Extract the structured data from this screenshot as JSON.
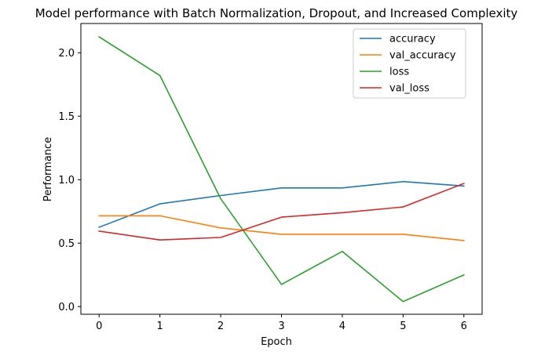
{
  "chart_data": {
    "type": "line",
    "title": "Model performance with Batch Normalization, Dropout, and Increased Complexity",
    "xlabel": "Epoch",
    "ylabel": "Performance",
    "x": [
      0,
      1,
      2,
      3,
      4,
      5,
      6
    ],
    "xlim": [
      -0.3,
      6.3
    ],
    "ylim": [
      -0.06,
      2.23
    ],
    "xticks": [
      "0",
      "1",
      "2",
      "3",
      "4",
      "5",
      "6"
    ],
    "yticks": [
      "0.0",
      "0.5",
      "1.0",
      "1.5",
      "2.0"
    ],
    "grid": false,
    "legend_position": "top-right",
    "series": [
      {
        "name": "accuracy",
        "color": "#1f77b4",
        "values": [
          0.625,
          0.81,
          0.875,
          0.935,
          0.935,
          0.985,
          0.95
        ]
      },
      {
        "name": "val_accuracy",
        "color": "#ff7f0e",
        "values": [
          0.715,
          0.715,
          0.62,
          0.57,
          0.57,
          0.57,
          0.52
        ]
      },
      {
        "name": "loss",
        "color": "#2ca02c",
        "values": [
          2.125,
          1.82,
          0.85,
          0.175,
          0.435,
          0.04,
          0.25
        ]
      },
      {
        "name": "val_loss",
        "color": "#d62728",
        "values": [
          0.595,
          0.525,
          0.545,
          0.705,
          0.74,
          0.785,
          0.97
        ]
      }
    ]
  }
}
